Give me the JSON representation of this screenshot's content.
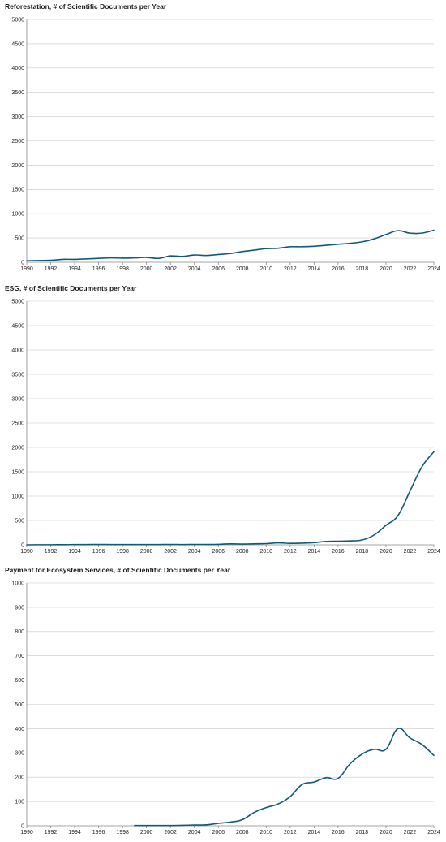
{
  "line_color": "#0f5a7a",
  "chart_data": [
    {
      "type": "line",
      "title": "Reforestation, # of Scientific Documents per Year",
      "xlabel": "",
      "ylabel": "",
      "ylim": [
        0,
        5000
      ],
      "yticks": [
        0,
        500,
        1000,
        1500,
        2000,
        2500,
        3000,
        3500,
        4000,
        4500,
        5000
      ],
      "xticks": [
        1990,
        1992,
        1994,
        1996,
        1998,
        2000,
        2002,
        2004,
        2006,
        2008,
        2010,
        2012,
        2014,
        2016,
        2018,
        2020,
        2022,
        2024
      ],
      "grid": true,
      "series": [
        {
          "x": [
            1990,
            1991,
            1992,
            1993,
            1994,
            1995,
            1996,
            1997,
            1998,
            1999,
            2000,
            2001,
            2002,
            2003,
            2004,
            2005,
            2006,
            2007,
            2008,
            2009,
            2010,
            2011,
            2012,
            2013,
            2014,
            2015,
            2016,
            2017,
            2018,
            2019,
            2020,
            2021,
            2022,
            2023,
            2024
          ],
          "values": [
            30,
            35,
            40,
            60,
            60,
            70,
            80,
            90,
            85,
            90,
            100,
            80,
            130,
            120,
            150,
            140,
            160,
            180,
            220,
            250,
            280,
            290,
            320,
            320,
            330,
            350,
            370,
            390,
            420,
            480,
            570,
            650,
            600,
            600,
            660
          ]
        }
      ]
    },
    {
      "type": "line",
      "title": "ESG, # of Scientific Documents per Year",
      "xlabel": "",
      "ylabel": "",
      "ylim": [
        0,
        5000
      ],
      "yticks": [
        0,
        500,
        1000,
        1500,
        2000,
        2500,
        3000,
        3500,
        4000,
        4500,
        5000
      ],
      "xticks": [
        1990,
        1992,
        1994,
        1996,
        1998,
        2000,
        2002,
        2004,
        2006,
        2008,
        2010,
        2012,
        2014,
        2016,
        2018,
        2020,
        2022,
        2024
      ],
      "grid": true,
      "series": [
        {
          "x": [
            1990,
            1991,
            1992,
            1993,
            1994,
            1995,
            1996,
            1997,
            1998,
            1999,
            2000,
            2001,
            2002,
            2003,
            2004,
            2005,
            2006,
            2007,
            2008,
            2009,
            2010,
            2011,
            2012,
            2013,
            2014,
            2015,
            2016,
            2017,
            2018,
            2019,
            2020,
            2021,
            2022,
            2023,
            2024
          ],
          "values": [
            0,
            2,
            2,
            3,
            5,
            5,
            8,
            6,
            5,
            5,
            5,
            5,
            8,
            5,
            8,
            8,
            10,
            20,
            15,
            20,
            25,
            40,
            30,
            35,
            45,
            70,
            75,
            80,
            100,
            200,
            400,
            600,
            1100,
            1600,
            1910
          ]
        }
      ]
    },
    {
      "type": "line",
      "title": "Payment for Ecosystem Services, # of Scientific Documents per Year",
      "xlabel": "",
      "ylabel": "",
      "ylim": [
        0,
        1000
      ],
      "yticks": [
        0,
        100,
        200,
        300,
        400,
        500,
        600,
        700,
        800,
        900,
        1000
      ],
      "xticks": [
        1990,
        1992,
        1994,
        1996,
        1998,
        2000,
        2002,
        2004,
        2006,
        2008,
        2010,
        2012,
        2014,
        2016,
        2018,
        2020,
        2022,
        2024
      ],
      "grid": true,
      "series": [
        {
          "x": [
            1999,
            2000,
            2001,
            2002,
            2003,
            2004,
            2005,
            2006,
            2007,
            2008,
            2009,
            2010,
            2011,
            2012,
            2013,
            2014,
            2015,
            2016,
            2017,
            2018,
            2019,
            2020,
            2021,
            2022,
            2023,
            2024
          ],
          "values": [
            1,
            1,
            1,
            1,
            2,
            3,
            4,
            10,
            15,
            25,
            55,
            75,
            90,
            120,
            170,
            180,
            198,
            195,
            255,
            295,
            315,
            315,
            400,
            362,
            335,
            290
          ]
        }
      ]
    }
  ]
}
